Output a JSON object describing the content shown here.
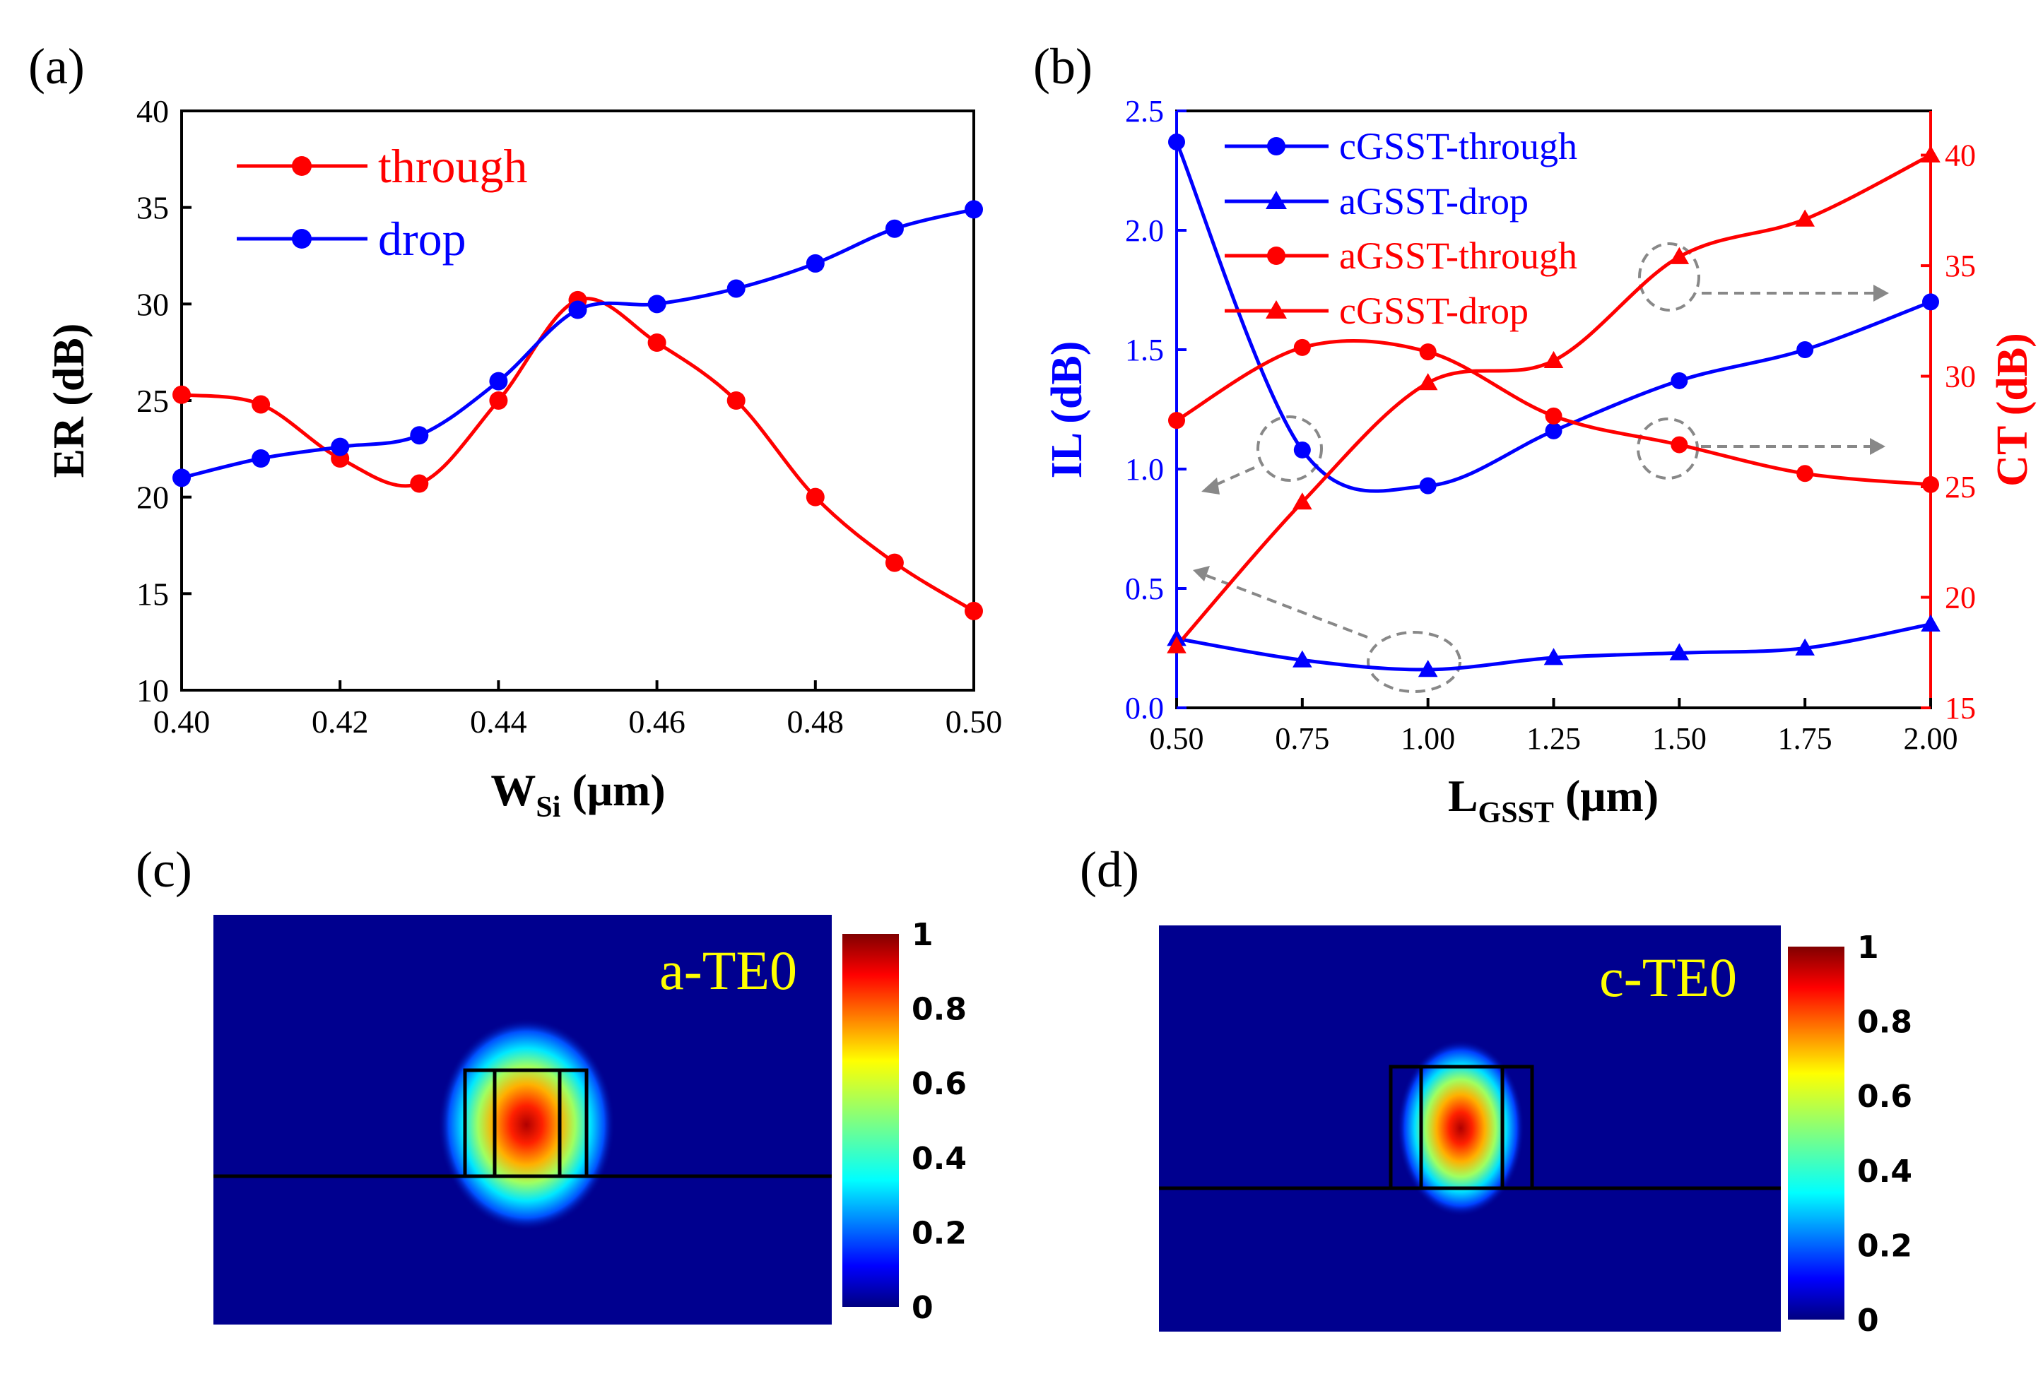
{
  "chart_data": [
    {
      "panel_label": "(a)",
      "type": "line",
      "xlabel": {
        "main": "W",
        "sub": "Si",
        "unit": " (μm)"
      },
      "ylabel": "ER (dB)",
      "xlim": [
        0.4,
        0.5
      ],
      "ylim": [
        10,
        40
      ],
      "xticks": [
        "0.40",
        "0.42",
        "0.44",
        "0.46",
        "0.48",
        "0.50"
      ],
      "yticks": [
        "10",
        "15",
        "20",
        "25",
        "30",
        "35",
        "40"
      ],
      "legend_position": "top-left",
      "series": [
        {
          "name": "through",
          "color": "#ff0000",
          "marker": "circle",
          "x": [
            0.4,
            0.41,
            0.42,
            0.43,
            0.44,
            0.45,
            0.46,
            0.47,
            0.48,
            0.49,
            0.5
          ],
          "values": [
            25.3,
            24.8,
            22.0,
            20.7,
            25.0,
            30.2,
            28.0,
            25.0,
            20.0,
            16.6,
            14.1
          ]
        },
        {
          "name": "drop",
          "color": "#0000ff",
          "marker": "circle",
          "x": [
            0.4,
            0.41,
            0.42,
            0.43,
            0.44,
            0.45,
            0.46,
            0.47,
            0.48,
            0.49,
            0.5
          ],
          "values": [
            21.0,
            22.0,
            22.6,
            23.2,
            26.0,
            29.7,
            30.0,
            30.8,
            32.1,
            33.9,
            34.9
          ]
        }
      ]
    },
    {
      "panel_label": "(b)",
      "type": "line",
      "xlabel": {
        "main": "L",
        "sub": "GSST",
        "unit": " (μm)"
      },
      "ylabel_left": "IL (dB)",
      "ylabel_right": "CT (dB)",
      "xlim": [
        0.5,
        2.0
      ],
      "ylim_left": [
        0,
        2.5
      ],
      "ylim_right": [
        15,
        42
      ],
      "xticks": [
        "0.50",
        "0.75",
        "1.00",
        "1.25",
        "1.50",
        "1.75",
        "2.00"
      ],
      "yticks_left": [
        "0.0",
        "0.5",
        "1.0",
        "1.5",
        "2.0",
        "2.5"
      ],
      "yticks_right": [
        "15",
        "20",
        "25",
        "30",
        "35",
        "40"
      ],
      "legend_position": "top-left",
      "series": [
        {
          "name": "cGSST-through",
          "axis": "left",
          "color": "#0000ff",
          "marker": "circle",
          "x": [
            0.5,
            0.75,
            1.0,
            1.25,
            1.5,
            1.75,
            2.0
          ],
          "values": [
            2.37,
            1.08,
            0.93,
            1.16,
            1.37,
            1.5,
            1.7
          ]
        },
        {
          "name": "aGSST-drop",
          "axis": "left",
          "color": "#0000ff",
          "marker": "triangle",
          "x": [
            0.5,
            0.75,
            1.0,
            1.25,
            1.5,
            1.75,
            2.0
          ],
          "values": [
            0.29,
            0.2,
            0.16,
            0.21,
            0.23,
            0.25,
            0.35
          ]
        },
        {
          "name": "aGSST-through",
          "axis": "right",
          "color": "#ff0000",
          "marker": "circle",
          "x": [
            0.5,
            0.75,
            1.0,
            1.25,
            1.5,
            1.75,
            2.0
          ],
          "values": [
            28.0,
            31.3,
            31.1,
            28.2,
            26.9,
            25.6,
            25.1
          ]
        },
        {
          "name": "cGSST-drop",
          "axis": "right",
          "color": "#ff0000",
          "marker": "triangle",
          "x": [
            0.5,
            0.75,
            1.0,
            1.25,
            1.5,
            1.75,
            2.0
          ],
          "values": [
            17.8,
            24.3,
            29.7,
            30.7,
            35.4,
            37.1,
            40.0
          ]
        }
      ]
    },
    {
      "panel_label": "(c)",
      "type": "heatmap",
      "mode_label": "a-TE0",
      "colorbar_ticks": [
        "0",
        "0.2",
        "0.4",
        "0.6",
        "0.8",
        "1"
      ],
      "colorbar_range": [
        0,
        1
      ]
    },
    {
      "panel_label": "(d)",
      "type": "heatmap",
      "mode_label": "c-TE0",
      "colorbar_ticks": [
        "0",
        "0.2",
        "0.4",
        "0.6",
        "0.8",
        "1"
      ],
      "colorbar_range": [
        0,
        1
      ]
    }
  ]
}
